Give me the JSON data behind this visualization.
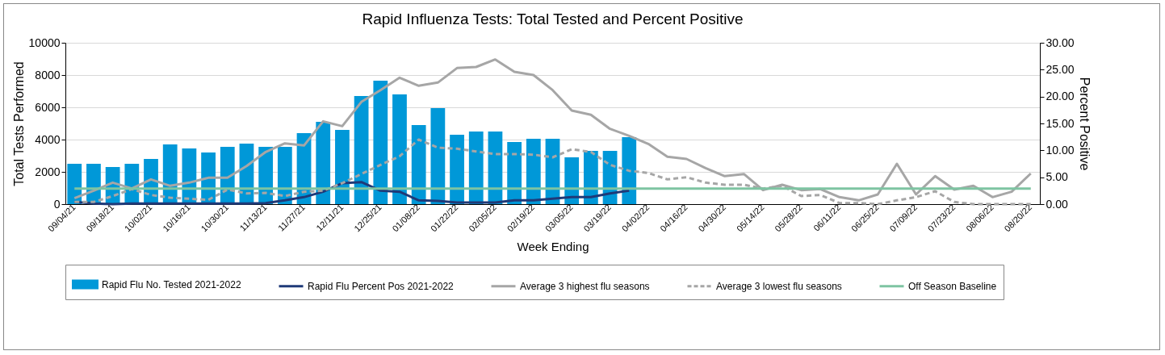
{
  "chart_data": {
    "type": "bar",
    "title": "Rapid Influenza Tests: Total Tested and Percent Positive",
    "xlabel": "Week Ending",
    "ylabel": "Total Tests Performed",
    "y2label": "Percent Positive",
    "categories": [
      "09/04/21",
      null,
      "09/18/21",
      null,
      "10/02/21",
      null,
      "10/16/21",
      null,
      "10/30/21",
      null,
      "11/13/21",
      null,
      "11/27/21",
      null,
      "12/11/21",
      null,
      "12/25/21",
      null,
      "01/08/22",
      null,
      "01/22/22",
      null,
      "02/05/22",
      null,
      "02/19/22",
      null,
      "03/05/22",
      null,
      "03/19/22",
      null,
      "04/02/22",
      null,
      "04/16/22",
      null,
      "04/30/22",
      null,
      "05/14/22",
      null,
      "05/28/22",
      null,
      "06/11/22",
      null,
      "06/25/22",
      null,
      "07/09/22",
      null,
      "07/23/22",
      null,
      "08/06/22",
      null,
      "08/20/22"
    ],
    "series": [
      {
        "name": "Rapid Flu No. Tested 2021-2022",
        "color": "#0098d8",
        "values": [
          2500,
          2500,
          2300,
          2500,
          2800,
          3700,
          3450,
          3200,
          3550,
          3750,
          3550,
          3550,
          4400,
          5100,
          4600,
          6700,
          7650,
          6800,
          4900,
          5950,
          4300,
          4500,
          4500,
          3850,
          4050,
          4050,
          2900,
          3300,
          3300,
          4150,
          null,
          null,
          null,
          null,
          null,
          null,
          null,
          null,
          null,
          null,
          null,
          null,
          null,
          null,
          null,
          null,
          null,
          null,
          null,
          null,
          null
        ]
      },
      {
        "name": "Rapid Flu Percent Pos 2021-2022",
        "type": "line",
        "axis": "y2",
        "color": "#1f3a78",
        "values": [
          0.4,
          0.1,
          0,
          0.1,
          0.1,
          0.1,
          0.1,
          0.1,
          0.1,
          0.1,
          0.2,
          0.7,
          1.3,
          2.3,
          3.9,
          4.1,
          2.5,
          2.3,
          0.7,
          0.6,
          0.3,
          0.3,
          0.3,
          0.7,
          0.7,
          1.0,
          1.3,
          1.3,
          2.0,
          2.5,
          null,
          null,
          null,
          null,
          null,
          null,
          null,
          null,
          null,
          null,
          null,
          null,
          null,
          null,
          null,
          null,
          null,
          null,
          null,
          null,
          null
        ]
      },
      {
        "name": "Average 3 highest flu seasons",
        "type": "line",
        "axis": "y2",
        "color": "#a6a6a6",
        "values": [
          1.1,
          2.5,
          4.0,
          2.9,
          4.6,
          3.4,
          4.0,
          4.9,
          4.9,
          7.1,
          9.7,
          11.3,
          10.9,
          15.4,
          14.5,
          19.0,
          21.2,
          23.5,
          22.0,
          22.6,
          25.3,
          25.5,
          26.9,
          24.6,
          24.0,
          21.2,
          17.4,
          16.6,
          14.0,
          12.7,
          11.2,
          8.8,
          8.4,
          6.7,
          5.2,
          5.6,
          2.6,
          3.6,
          2.6,
          2.8,
          1.3,
          0.7,
          1.8,
          7.5,
          1.8,
          5.2,
          2.7,
          3.4,
          1.3,
          2.3,
          5.7
        ]
      },
      {
        "name": "Average 3 lowest flu seasons",
        "type": "line",
        "axis": "y2",
        "line_style": "dashed",
        "color": "#a6a6a6",
        "values": [
          0.4,
          0.4,
          1.5,
          2.8,
          1.7,
          1.2,
          1.0,
          0.8,
          2.7,
          2.0,
          2.1,
          1.5,
          2.3,
          2.5,
          3.9,
          5.6,
          7.3,
          8.9,
          12.0,
          10.5,
          10.3,
          9.8,
          9.3,
          9.3,
          9.2,
          8.7,
          10.2,
          9.7,
          7.3,
          6.2,
          5.8,
          4.6,
          5.0,
          4.0,
          3.6,
          3.6,
          2.9,
          3.4,
          1.5,
          1.7,
          0.2,
          0.2,
          0,
          0.7,
          1.3,
          2.4,
          0.4,
          0,
          0,
          0,
          0
        ]
      },
      {
        "name": "Off Season Baseline",
        "type": "line",
        "axis": "y2",
        "color": "#7ec4a2",
        "values": [
          2.9,
          2.9,
          2.9,
          2.9,
          2.9,
          2.9,
          2.9,
          2.9,
          2.9,
          2.9,
          2.9,
          2.9,
          2.9,
          2.9,
          2.9,
          2.9,
          2.9,
          2.9,
          2.9,
          2.9,
          2.9,
          2.9,
          2.9,
          2.9,
          2.9,
          2.9,
          2.9,
          2.9,
          2.9,
          2.9,
          2.9,
          2.9,
          2.9,
          2.9,
          2.9,
          2.9,
          2.9,
          2.9,
          2.9,
          2.9,
          2.9,
          2.9,
          2.9,
          2.9,
          2.9,
          2.9,
          2.9,
          2.9,
          2.9,
          2.9,
          2.9
        ]
      }
    ],
    "ylim": [
      0,
      10000
    ],
    "yticks": [
      0,
      2000,
      4000,
      6000,
      8000,
      10000
    ],
    "y2lim": [
      0,
      30
    ],
    "y2ticks": [
      {
        "value": 0,
        "label": "0.00"
      },
      {
        "value": 5,
        "label": "5.00"
      },
      {
        "value": 10,
        "label": "10.00"
      },
      {
        "value": 15,
        "label": "15.00"
      },
      {
        "value": 20,
        "label": "20.00"
      },
      {
        "value": 25,
        "label": "25.00"
      },
      {
        "value": 30,
        "label": "30.00"
      }
    ],
    "grid": "y",
    "legend": "bottom",
    "marker": "none"
  }
}
